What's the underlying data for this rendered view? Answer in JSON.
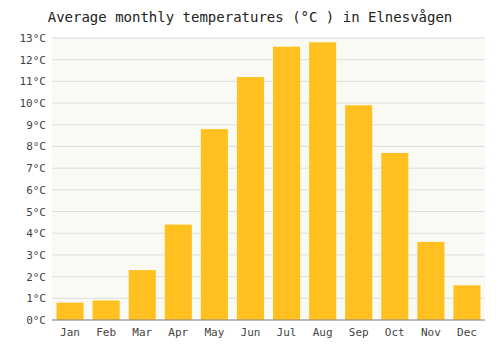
{
  "chart_data": {
    "type": "bar",
    "title": "Average monthly temperatures (°C ) in Elnesvågen",
    "categories": [
      "Jan",
      "Feb",
      "Mar",
      "Apr",
      "May",
      "Jun",
      "Jul",
      "Aug",
      "Sep",
      "Oct",
      "Nov",
      "Dec"
    ],
    "values": [
      0.8,
      0.9,
      2.3,
      4.4,
      8.8,
      11.2,
      12.6,
      12.8,
      9.9,
      7.7,
      3.6,
      1.6
    ],
    "color": "#FFC020",
    "ylim": [
      0,
      13
    ],
    "yticks": [
      {
        "value": 0,
        "label": "0°C"
      },
      {
        "value": 1,
        "label": "1°C"
      },
      {
        "value": 2,
        "label": "2°C"
      },
      {
        "value": 3,
        "label": "3°C"
      },
      {
        "value": 4,
        "label": "4°C"
      },
      {
        "value": 5,
        "label": "5°C"
      },
      {
        "value": 6,
        "label": "6°C"
      },
      {
        "value": 7,
        "label": "7°C"
      },
      {
        "value": 8,
        "label": "8°C"
      },
      {
        "value": 9,
        "label": "9°C"
      },
      {
        "value": 10,
        "label": "10°C"
      },
      {
        "value": 11,
        "label": "11°C"
      },
      {
        "value": 12,
        "label": "12°C"
      },
      {
        "value": 13,
        "label": "13°C"
      }
    ],
    "grid": true
  }
}
